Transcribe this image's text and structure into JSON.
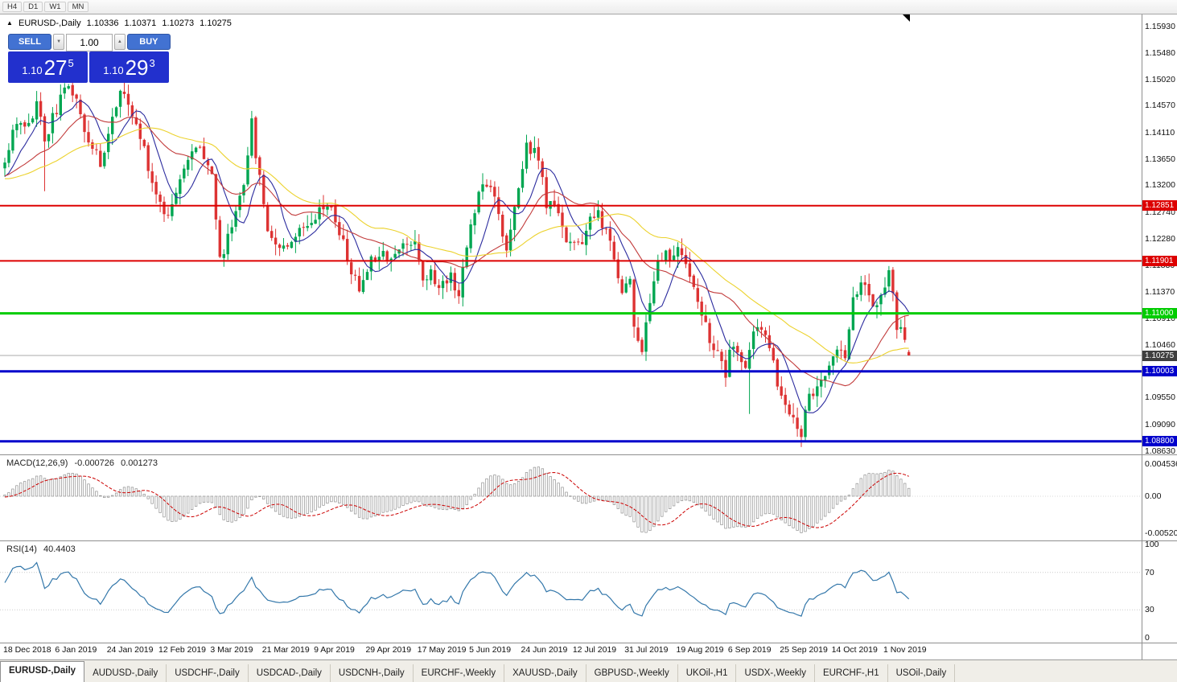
{
  "toolbar": {
    "timeframes": [
      "H4",
      "D1",
      "W1",
      "MN"
    ]
  },
  "header": {
    "collapse_icon": "▲",
    "symbol_period": "EURUSD-,Daily",
    "open": "1.10336",
    "high": "1.10371",
    "low": "1.10273",
    "close": "1.10275"
  },
  "trade_panel": {
    "sell_label": "SELL",
    "buy_label": "BUY",
    "volume": "1.00",
    "vol_down_icon": "▼",
    "vol_up_icon": "▲",
    "bid": {
      "prefix": "1.10",
      "big": "27",
      "sup": "5"
    },
    "ask": {
      "prefix": "1.10",
      "big": "29",
      "sup": "3"
    },
    "box_color": "#2230cd",
    "button_color": "#4272d2"
  },
  "price_axis": {
    "plain_labels": [
      "1.15930",
      "1.15480",
      "1.15020",
      "1.14570",
      "1.14110",
      "1.13650",
      "1.13200",
      "1.12740",
      "1.12280",
      "1.11830",
      "1.11370",
      "1.10910",
      "1.10460",
      "1.09550",
      "1.09090",
      "1.08630"
    ]
  },
  "hlines": [
    {
      "value": 1.12851,
      "label": "1.12851",
      "color": "#dd0000",
      "thickness": 2
    },
    {
      "value": 1.11901,
      "label": "1.11901",
      "color": "#dd0000",
      "thickness": 2
    },
    {
      "value": 1.11,
      "label": "1.11000",
      "color": "#00cc00",
      "thickness": 3
    },
    {
      "value": 1.10003,
      "label": "1.10003",
      "color": "#0000cc",
      "thickness": 3
    },
    {
      "value": 1.088,
      "label": "1.08800",
      "color": "#0000cc",
      "thickness": 3
    }
  ],
  "current_price": {
    "value": 1.10275,
    "label": "1.10275",
    "line_color": "#aaaaaa",
    "box_color": "#3f3f3f"
  },
  "indicators": {
    "macd": {
      "label": "MACD(12,26,9)",
      "value_main": "-0.000726",
      "value_signal": "0.001273",
      "fast": 12,
      "slow": 26,
      "signal": 9,
      "histogram_color": "#909090",
      "signal_color": "#cc0000",
      "axis_labels": [
        {
          "text": "0.004536",
          "value": 0.004536
        },
        {
          "text": "0.00",
          "value": 0
        },
        {
          "text": "-0.005205",
          "value": -0.005205
        }
      ]
    },
    "rsi": {
      "label": "RSI(14)",
      "value": "40.4403",
      "period": 14,
      "line_color": "#3377aa",
      "levels": [
        70,
        30
      ],
      "axis_labels": [
        {
          "text": "100",
          "value": 100
        },
        {
          "text": "70",
          "value": 70
        },
        {
          "text": "30",
          "value": 30
        },
        {
          "text": "0",
          "value": 0
        }
      ]
    }
  },
  "date_axis": [
    "18 Dec 2018",
    "6 Jan 2019",
    "24 Jan 2019",
    "12 Feb 2019",
    "3 Mar 2019",
    "21 Mar 2019",
    "9 Apr 2019",
    "29 Apr 2019",
    "17 May 2019",
    "5 Jun 2019",
    "24 Jun 2019",
    "12 Jul 2019",
    "31 Jul 2019",
    "19 Aug 2019",
    "6 Sep 2019",
    "25 Sep 2019",
    "14 Oct 2019",
    "1 Nov 2019"
  ],
  "tabs": [
    {
      "label": "EURUSD-,Daily",
      "active": true
    },
    {
      "label": "AUDUSD-,Daily",
      "active": false
    },
    {
      "label": "USDCHF-,Daily",
      "active": false
    },
    {
      "label": "USDCAD-,Daily",
      "active": false
    },
    {
      "label": "USDCNH-,Daily",
      "active": false
    },
    {
      "label": "EURCHF-,Weekly",
      "active": false
    },
    {
      "label": "XAUUSD-,Daily",
      "active": false
    },
    {
      "label": "GBPUSD-,Weekly",
      "active": false
    },
    {
      "label": "UKOil-,H1",
      "active": false
    },
    {
      "label": "USDX-,Weekly",
      "active": false
    },
    {
      "label": "EURCHF-,H1",
      "active": false
    },
    {
      "label": "USOil-,Daily",
      "active": false
    }
  ],
  "chart_data": {
    "type": "candlestick",
    "symbol": "EURUSD-",
    "period": "Daily",
    "price_range": {
      "min": 1.0863,
      "max": 1.1593
    },
    "bull_color": "#00a651",
    "bear_color": "#dd3333",
    "moving_averages": [
      {
        "period": 8,
        "color": "#2b2b9e"
      },
      {
        "period": 20,
        "color": "#c23b3b"
      },
      {
        "period": 40,
        "color": "#ecd22d"
      }
    ],
    "candle_count": 228,
    "pre_candles": 40,
    "noise_seed": 11,
    "noise_amp": 0.0011,
    "wick_amp": 0.002,
    "anchors": [
      [
        -40,
        1.138
      ],
      [
        -30,
        1.13
      ],
      [
        -20,
        1.133
      ],
      [
        -10,
        1.134
      ],
      [
        -5,
        1.132
      ],
      [
        0,
        1.136
      ],
      [
        2,
        1.1405
      ],
      [
        4,
        1.1438
      ],
      [
        6,
        1.142
      ],
      [
        8,
        1.1468
      ],
      [
        10,
        1.1398
      ],
      [
        13,
        1.1452
      ],
      [
        16,
        1.1492
      ],
      [
        18,
        1.1475
      ],
      [
        21,
        1.1392
      ],
      [
        24,
        1.136
      ],
      [
        26,
        1.141
      ],
      [
        29,
        1.1482
      ],
      [
        32,
        1.144
      ],
      [
        35,
        1.1382
      ],
      [
        38,
        1.1302
      ],
      [
        41,
        1.1268
      ],
      [
        44,
        1.134
      ],
      [
        47,
        1.1372
      ],
      [
        49,
        1.1392
      ],
      [
        52,
        1.134
      ],
      [
        54,
        1.1188
      ],
      [
        57,
        1.1252
      ],
      [
        60,
        1.133
      ],
      [
        62,
        1.1425
      ],
      [
        64,
        1.133
      ],
      [
        66,
        1.125
      ],
      [
        68,
        1.1218
      ],
      [
        71,
        1.1222
      ],
      [
        74,
        1.1242
      ],
      [
        77,
        1.1265
      ],
      [
        81,
        1.1292
      ],
      [
        84,
        1.1242
      ],
      [
        87,
        1.1172
      ],
      [
        89,
        1.114
      ],
      [
        91,
        1.1182
      ],
      [
        94,
        1.1208
      ],
      [
        97,
        1.1196
      ],
      [
        100,
        1.1216
      ],
      [
        103,
        1.1228
      ],
      [
        105,
        1.1162
      ],
      [
        107,
        1.1168
      ],
      [
        109,
        1.1142
      ],
      [
        112,
        1.1168
      ],
      [
        114,
        1.1132
      ],
      [
        117,
        1.1252
      ],
      [
        120,
        1.1332
      ],
      [
        123,
        1.131
      ],
      [
        126,
        1.1202
      ],
      [
        129,
        1.1312
      ],
      [
        131,
        1.1392
      ],
      [
        134,
        1.1366
      ],
      [
        136,
        1.1286
      ],
      [
        139,
        1.128
      ],
      [
        141,
        1.1226
      ],
      [
        144,
        1.1212
      ],
      [
        147,
        1.1256
      ],
      [
        149,
        1.1272
      ],
      [
        152,
        1.1216
      ],
      [
        155,
        1.1142
      ],
      [
        157,
        1.1156
      ],
      [
        158,
        1.1078
      ],
      [
        160,
        1.1042
      ],
      [
        162,
        1.1112
      ],
      [
        164,
        1.1202
      ],
      [
        167,
        1.1198
      ],
      [
        170,
        1.1206
      ],
      [
        172,
        1.1162
      ],
      [
        175,
        1.1092
      ],
      [
        178,
        1.1042
      ],
      [
        181,
        1.0992
      ],
      [
        182,
        1.1036
      ],
      [
        184,
        1.1028
      ],
      [
        186,
        1.1012
      ],
      [
        188,
        1.1062
      ],
      [
        190,
        1.1072
      ],
      [
        192,
        1.1042
      ],
      [
        195,
        1.0952
      ],
      [
        198,
        1.0922
      ],
      [
        200,
        1.0892
      ],
      [
        202,
        1.0962
      ],
      [
        205,
        1.0976
      ],
      [
        208,
        1.1026
      ],
      [
        211,
        1.1032
      ],
      [
        213,
        1.113
      ],
      [
        216,
        1.1152
      ],
      [
        219,
        1.1106
      ],
      [
        221,
        1.1152
      ],
      [
        222,
        1.1166
      ],
      [
        223,
        1.1128
      ],
      [
        224,
        1.1074
      ],
      [
        225,
        1.1068
      ],
      [
        226,
        1.1048
      ],
      [
        227,
        1.10275
      ]
    ],
    "overrides": {
      "10": {
        "low": 1.131
      },
      "62": {
        "high": 1.1448
      },
      "187": {
        "low": 1.0927
      },
      "227": {
        "open": 1.10336,
        "high": 1.10371,
        "low": 1.10273,
        "close": 1.10275
      }
    }
  }
}
